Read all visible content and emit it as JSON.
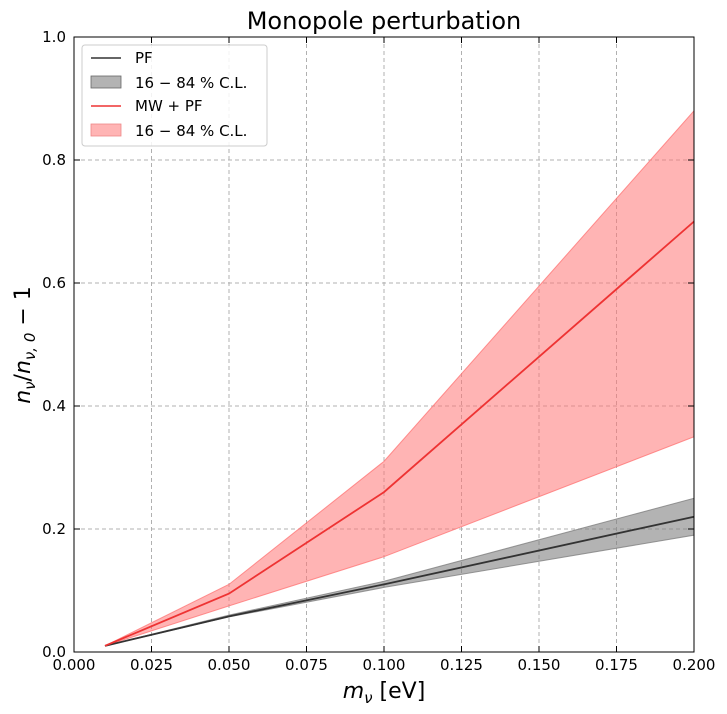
{
  "chart_data": {
    "type": "line",
    "title": "Monopole perturbation",
    "xlabel_main": "m",
    "xlabel_sub": "ν",
    "xlabel_unit": " [eV]",
    "ylabel_n": "n",
    "ylabel_nu": "ν",
    "ylabel_slash": "/",
    "ylabel_n2": "n",
    "ylabel_sub2": "ν, 0",
    "ylabel_tail": " − 1",
    "xlim": [
      0.0,
      0.2
    ],
    "ylim": [
      0.0,
      1.0
    ],
    "xticks": [
      0.0,
      0.025,
      0.05,
      0.075,
      0.1,
      0.125,
      0.15,
      0.175,
      0.2
    ],
    "xtick_labels": [
      "0.000",
      "0.025",
      "0.050",
      "0.075",
      "0.100",
      "0.125",
      "0.150",
      "0.175",
      "0.200"
    ],
    "yticks": [
      0.0,
      0.2,
      0.4,
      0.6,
      0.8,
      1.0
    ],
    "ytick_labels": [
      "0.0",
      "0.2",
      "0.4",
      "0.6",
      "0.8",
      "1.0"
    ],
    "grid": true,
    "legend_position": "top-left",
    "x": [
      0.01,
      0.05,
      0.1,
      0.2
    ],
    "series": [
      {
        "name": "PF",
        "color": "#333333",
        "values": [
          0.01,
          0.058,
          0.11,
          0.22
        ],
        "band_name": "16 − 84 % C.L.",
        "band_color": "#808080",
        "band_lower": [
          0.01,
          0.057,
          0.105,
          0.19
        ],
        "band_upper": [
          0.01,
          0.06,
          0.115,
          0.25
        ]
      },
      {
        "name": "MW + PF",
        "color": "#ee3333",
        "values": [
          0.01,
          0.095,
          0.26,
          0.7
        ],
        "band_name": "16 − 84 % C.L.",
        "band_color": "#ff7777",
        "band_lower": [
          0.01,
          0.075,
          0.155,
          0.35
        ],
        "band_upper": [
          0.01,
          0.11,
          0.31,
          0.88
        ]
      }
    ]
  }
}
